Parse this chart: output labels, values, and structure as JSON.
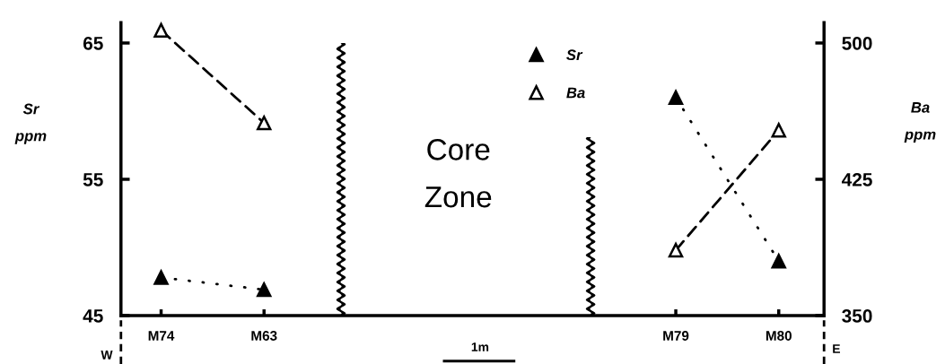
{
  "chart_data": {
    "type": "line",
    "categories": [
      "M74",
      "M63",
      null,
      null,
      null,
      "M79",
      "M80"
    ],
    "series": [
      {
        "name": "Sr",
        "color": "#000000",
        "values": [
          47.8,
          46.9,
          null,
          null,
          null,
          null,
          null
        ],
        "line_style": "dotted"
      },
      {
        "color": "#000000",
        "values": [
          null,
          null,
          null,
          null,
          null,
          61,
          49
        ],
        "line_style": "dotted"
      },
      {
        "name": "Ba",
        "color": "#000000",
        "values": [
          507,
          456,
          null,
          null,
          null,
          null,
          null
        ],
        "line_style": "dashed",
        "axis": "y2"
      },
      {
        "color": "#000000",
        "values": [
          null,
          null,
          null,
          null,
          null,
          386,
          452
        ],
        "line_style": "dashed",
        "axis": "y2"
      }
    ],
    "marker": "triangle",
    "ylabel": "Sr ppm",
    "y2label": "Ba ppm",
    "ylim": [
      45,
      66.5
    ],
    "yticks": [
      45,
      55,
      65
    ],
    "y2lim": [
      350,
      511.25
    ],
    "y2ticks": [
      350,
      425,
      500
    ],
    "legend": "top",
    "annotations": [
      "Core Zone",
      "1m",
      "W",
      "E"
    ]
  }
}
